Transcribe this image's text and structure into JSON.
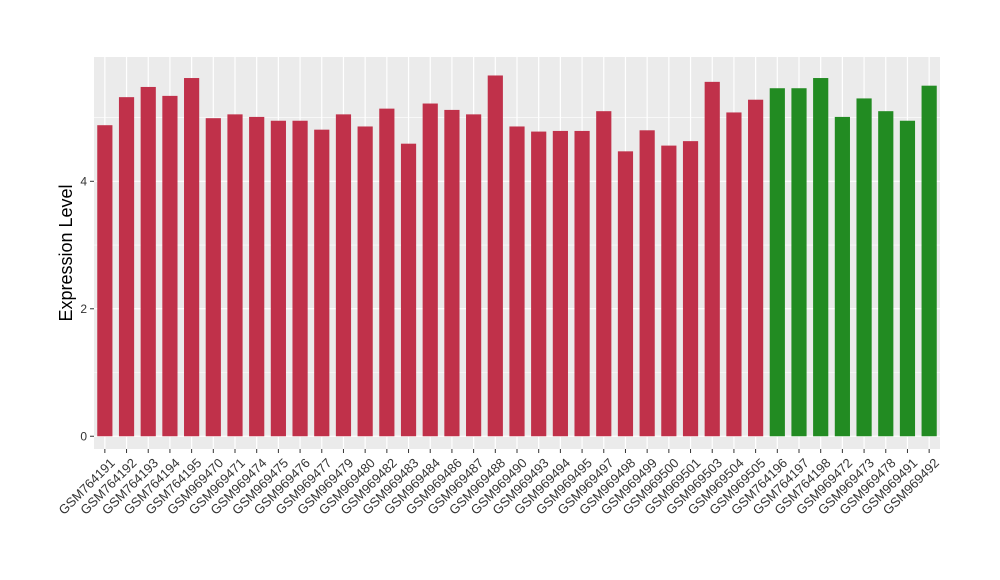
{
  "chart_data": {
    "type": "bar",
    "ylabel": "Expression Level",
    "xlabel": "",
    "title": "",
    "ylim": [
      -0.2,
      5.95
    ],
    "yticks": [
      0,
      2,
      4
    ],
    "grid": true,
    "legend": "none",
    "colors": {
      "group_a": "#C0314A",
      "group_b": "#228B22",
      "panel_bg": "#EBEBEB",
      "grid": "#FFFFFF"
    },
    "categories": [
      "GSM764191",
      "GSM764192",
      "GSM764193",
      "GSM764194",
      "GSM764195",
      "GSM969470",
      "GSM969471",
      "GSM969474",
      "GSM969475",
      "GSM969476",
      "GSM969477",
      "GSM969479",
      "GSM969480",
      "GSM969482",
      "GSM969483",
      "GSM969484",
      "GSM969486",
      "GSM969487",
      "GSM969488",
      "GSM969490",
      "GSM969493",
      "GSM969494",
      "GSM969495",
      "GSM969497",
      "GSM969498",
      "GSM969499",
      "GSM969500",
      "GSM969501",
      "GSM969503",
      "GSM969504",
      "GSM969505",
      "GSM764196",
      "GSM764197",
      "GSM764198",
      "GSM969472",
      "GSM969473",
      "GSM969478",
      "GSM969491",
      "GSM969492"
    ],
    "values": [
      4.88,
      5.32,
      5.48,
      5.34,
      5.62,
      4.99,
      5.05,
      5.01,
      4.95,
      4.95,
      4.81,
      5.05,
      4.86,
      5.14,
      4.59,
      5.22,
      5.12,
      5.05,
      5.66,
      4.86,
      4.78,
      4.79,
      4.79,
      5.1,
      4.47,
      4.8,
      4.56,
      4.63,
      5.56,
      5.08,
      5.28,
      5.46,
      5.46,
      5.62,
      5.01,
      5.3,
      5.1,
      4.95,
      5.5
    ],
    "groups": [
      "group_a",
      "group_a",
      "group_a",
      "group_a",
      "group_a",
      "group_a",
      "group_a",
      "group_a",
      "group_a",
      "group_a",
      "group_a",
      "group_a",
      "group_a",
      "group_a",
      "group_a",
      "group_a",
      "group_a",
      "group_a",
      "group_a",
      "group_a",
      "group_a",
      "group_a",
      "group_a",
      "group_a",
      "group_a",
      "group_a",
      "group_a",
      "group_a",
      "group_a",
      "group_a",
      "group_a",
      "group_b",
      "group_b",
      "group_b",
      "group_b",
      "group_b",
      "group_b",
      "group_b",
      "group_b"
    ]
  }
}
